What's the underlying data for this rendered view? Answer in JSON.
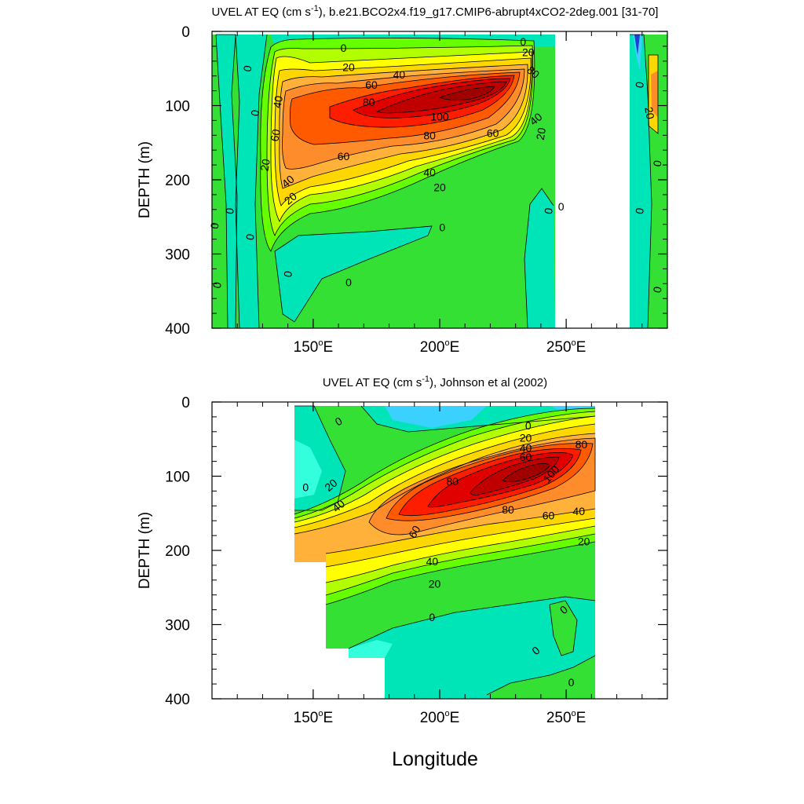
{
  "figure": {
    "xaxis_label": "Longitude",
    "colors": {
      "neg_deep": "#1f3fd0",
      "neg_mid": "#3bd1ff",
      "neg_light": "#33ffdd",
      "zero": "#00e5b8",
      "c0": "#33e033",
      "c10": "#66ff00",
      "c20": "#b2ff00",
      "c30": "#ffff00",
      "c40": "#ffd700",
      "c50": "#ffb13a",
      "c60": "#ff8c2a",
      "c70": "#ff5a00",
      "c80": "#ff1d00",
      "c90": "#e00000",
      "c100": "#c00000",
      "c110": "#a00000"
    }
  },
  "chart_data": [
    {
      "type": "contour",
      "title_prefix": "UVEL AT EQ (cm s",
      "title_sup": "-1",
      "title_suffix": "), b.e21.BCO2x4.f19_g17.CMIP6-abrupt4xCO2-2deg.001 [31-70]",
      "ylabel": "DEPTH (m)",
      "xlim": [
        110,
        290
      ],
      "ylim": [
        400,
        0
      ],
      "xticks": [
        150,
        200,
        250
      ],
      "xtick_labels": [
        "150",
        "200",
        "250"
      ],
      "xtick_suffix": "E",
      "yticks": [
        0,
        100,
        200,
        300,
        400
      ],
      "ytick_labels": [
        "0",
        "100",
        "200",
        "300",
        "400"
      ],
      "contour_interval": 10,
      "max_value": 110,
      "max_location": {
        "lon": 210,
        "depth": 90
      },
      "ocean_segments": [
        [
          110,
          248
        ],
        [
          278,
          290
        ]
      ],
      "contour_labels": [
        {
          "text": "0",
          "lon": 124,
          "depth": 50,
          "rot": -80
        },
        {
          "text": "0",
          "lon": 127,
          "depth": 110,
          "rot": -80
        },
        {
          "text": "0",
          "lon": 117,
          "depth": 242,
          "rot": -80
        },
        {
          "text": "0",
          "lon": 111,
          "depth": 262,
          "rot": -80
        },
        {
          "text": "0",
          "lon": 125,
          "depth": 277,
          "rot": -80
        },
        {
          "text": "0",
          "lon": 112,
          "depth": 342,
          "rot": -80
        },
        {
          "text": "0",
          "lon": 140,
          "depth": 327,
          "rot": -80
        },
        {
          "text": "0",
          "lon": 164,
          "depth": 338,
          "rot": 0
        },
        {
          "text": "0",
          "lon": 201,
          "depth": 264,
          "rot": 0
        },
        {
          "text": "0",
          "lon": 162,
          "depth": 22,
          "rot": 0
        },
        {
          "text": "0",
          "lon": 233,
          "depth": 14,
          "rot": 0
        },
        {
          "text": "0",
          "lon": 243,
          "depth": 242,
          "rot": -80
        },
        {
          "text": "0",
          "lon": 248,
          "depth": 236,
          "rot": 0
        },
        {
          "text": "0",
          "lon": 279,
          "depth": 242,
          "rot": -80
        },
        {
          "text": "0",
          "lon": 279,
          "depth": 72,
          "rot": -80
        },
        {
          "text": "0",
          "lon": 286,
          "depth": 348,
          "rot": -80
        },
        {
          "text": "0",
          "lon": 286,
          "depth": 178,
          "rot": -80
        },
        {
          "text": "20",
          "lon": 164,
          "depth": 48,
          "rot": 0
        },
        {
          "text": "40",
          "lon": 184,
          "depth": 58,
          "rot": 0
        },
        {
          "text": "60",
          "lon": 173,
          "depth": 72,
          "rot": 0
        },
        {
          "text": "80",
          "lon": 172,
          "depth": 95,
          "rot": 0
        },
        {
          "text": "100",
          "lon": 200,
          "depth": 115,
          "rot": 0
        },
        {
          "text": "80",
          "lon": 196,
          "depth": 140,
          "rot": 0
        },
        {
          "text": "60",
          "lon": 221,
          "depth": 137,
          "rot": 0
        },
        {
          "text": "40",
          "lon": 238,
          "depth": 118,
          "rot": -40
        },
        {
          "text": "20",
          "lon": 240,
          "depth": 138,
          "rot": -80
        },
        {
          "text": "80",
          "lon": 237,
          "depth": 55,
          "rot": 40
        },
        {
          "text": "20",
          "lon": 235,
          "depth": 28,
          "rot": 0
        },
        {
          "text": "60",
          "lon": 162,
          "depth": 168,
          "rot": 0
        },
        {
          "text": "40",
          "lon": 196,
          "depth": 190,
          "rot": 0
        },
        {
          "text": "20",
          "lon": 200,
          "depth": 210,
          "rot": 0
        },
        {
          "text": "40",
          "lon": 136,
          "depth": 95,
          "rot": -80
        },
        {
          "text": "60",
          "lon": 135,
          "depth": 140,
          "rot": -80
        },
        {
          "text": "20",
          "lon": 131,
          "depth": 180,
          "rot": -80
        },
        {
          "text": "40",
          "lon": 140,
          "depth": 202,
          "rot": -40
        },
        {
          "text": "20",
          "lon": 141,
          "depth": 225,
          "rot": -40
        },
        {
          "text": "20",
          "lon": 283,
          "depth": 110,
          "rot": 80
        }
      ]
    },
    {
      "type": "contour",
      "title_prefix": "UVEL AT EQ (cm s",
      "title_sup": "-1",
      "title_suffix": "), Johnson et al (2002)",
      "ylabel": "DEPTH (m)",
      "xlim": [
        110,
        290
      ],
      "ylim": [
        400,
        0
      ],
      "xticks": [
        150,
        200,
        250
      ],
      "xtick_labels": [
        "150",
        "200",
        "250"
      ],
      "xtick_suffix": "E",
      "yticks": [
        0,
        100,
        200,
        300,
        400
      ],
      "ytick_labels": [
        "0",
        "100",
        "200",
        "300",
        "400"
      ],
      "contour_interval": 10,
      "max_value": 110,
      "max_location": {
        "lon": 230,
        "depth": 100
      },
      "data_extent": {
        "lon_min": 143,
        "lon_max": 265
      },
      "contour_labels": [
        {
          "text": "0",
          "lon": 160,
          "depth": 26,
          "rot": -30
        },
        {
          "text": "0",
          "lon": 147,
          "depth": 115,
          "rot": 0
        },
        {
          "text": "20",
          "lon": 157,
          "depth": 112,
          "rot": -40
        },
        {
          "text": "40",
          "lon": 160,
          "depth": 140,
          "rot": -40
        },
        {
          "text": "60",
          "lon": 190,
          "depth": 175,
          "rot": -60
        },
        {
          "text": "80",
          "lon": 205,
          "depth": 107,
          "rot": 0
        },
        {
          "text": "80",
          "lon": 227,
          "depth": 145,
          "rot": 0
        },
        {
          "text": "60",
          "lon": 243,
          "depth": 153,
          "rot": 0
        },
        {
          "text": "40",
          "lon": 255,
          "depth": 147,
          "rot": 0
        },
        {
          "text": "20",
          "lon": 257,
          "depth": 188,
          "rot": 0
        },
        {
          "text": "100",
          "lon": 244,
          "depth": 97,
          "rot": -50
        },
        {
          "text": "0",
          "lon": 235,
          "depth": 32,
          "rot": 0
        },
        {
          "text": "20",
          "lon": 234,
          "depth": 48,
          "rot": 0
        },
        {
          "text": "40",
          "lon": 234,
          "depth": 62,
          "rot": 0
        },
        {
          "text": "60",
          "lon": 234,
          "depth": 74,
          "rot": 0
        },
        {
          "text": "80",
          "lon": 256,
          "depth": 57,
          "rot": 0
        },
        {
          "text": "40",
          "lon": 197,
          "depth": 215,
          "rot": 0
        },
        {
          "text": "20",
          "lon": 198,
          "depth": 245,
          "rot": 0
        },
        {
          "text": "0",
          "lon": 197,
          "depth": 290,
          "rot": 0
        },
        {
          "text": "0",
          "lon": 249,
          "depth": 280,
          "rot": -40
        },
        {
          "text": "0",
          "lon": 238,
          "depth": 335,
          "rot": -40
        },
        {
          "text": "0",
          "lon": 252,
          "depth": 378,
          "rot": 0
        }
      ]
    }
  ]
}
